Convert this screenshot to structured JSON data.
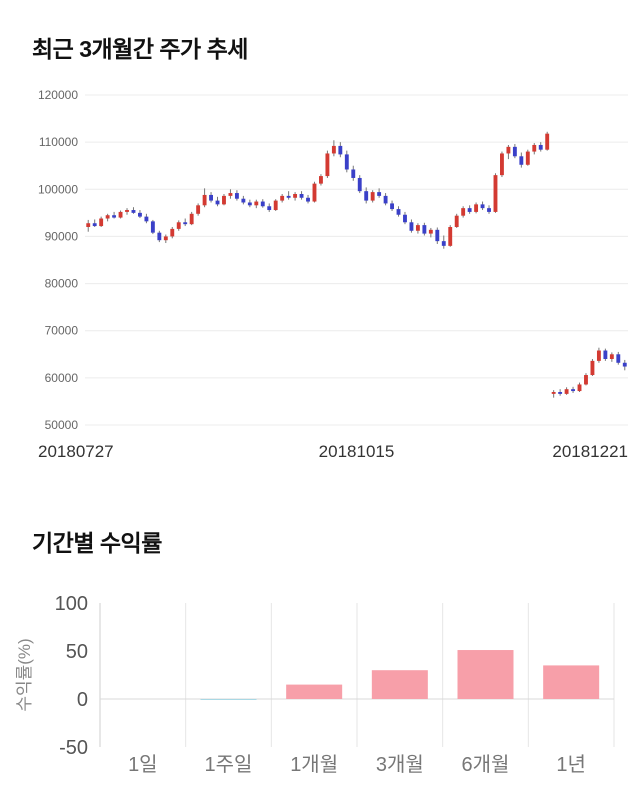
{
  "page": {
    "background": "#ffffff"
  },
  "chart_data": [
    {
      "type": "candlestick",
      "title": "최근 3개월간 주가 추세",
      "ylim": [
        50000,
        120000
      ],
      "y_ticks": [
        120000,
        110000,
        100000,
        90000,
        80000,
        70000,
        60000,
        50000
      ],
      "x_tick_labels": [
        "20180727",
        "20181015",
        "20181221"
      ],
      "up_color": "#d33a32",
      "down_color": "#3a40c8",
      "wick_color": "#777777",
      "grid_color": "#ececec",
      "candles": [
        [
          92000,
          93500,
          91000,
          92800
        ],
        [
          92800,
          93600,
          92000,
          92200
        ],
        [
          92200,
          94200,
          92000,
          93800
        ],
        [
          93800,
          94800,
          93200,
          94500
        ],
        [
          94500,
          95200,
          93800,
          94000
        ],
        [
          94000,
          95500,
          93800,
          95200
        ],
        [
          95200,
          96000,
          94600,
          95600
        ],
        [
          95600,
          96200,
          94800,
          95000
        ],
        [
          95000,
          95600,
          93900,
          94200
        ],
        [
          94200,
          94800,
          92800,
          93200
        ],
        [
          93200,
          93500,
          90500,
          90800
        ],
        [
          90800,
          91200,
          88800,
          89200
        ],
        [
          89200,
          90400,
          88600,
          90000
        ],
        [
          90000,
          92000,
          89600,
          91600
        ],
        [
          91600,
          93400,
          91200,
          93000
        ],
        [
          93000,
          93800,
          92200,
          92600
        ],
        [
          92600,
          95200,
          92400,
          94800
        ],
        [
          94800,
          97000,
          94400,
          96600
        ],
        [
          96600,
          100200,
          96200,
          98800
        ],
        [
          98800,
          99400,
          97200,
          97600
        ],
        [
          97600,
          98400,
          96400,
          96800
        ],
        [
          96800,
          99000,
          96600,
          98600
        ],
        [
          98600,
          100000,
          98000,
          99200
        ],
        [
          99200,
          99800,
          97600,
          98000
        ],
        [
          98000,
          98600,
          96800,
          97200
        ],
        [
          97200,
          97800,
          96200,
          96600
        ],
        [
          96600,
          97800,
          96000,
          97400
        ],
        [
          97400,
          97900,
          96100,
          96400
        ],
        [
          96400,
          97000,
          95200,
          95600
        ],
        [
          95600,
          97900,
          95400,
          97600
        ],
        [
          97600,
          99000,
          97200,
          98600
        ],
        [
          98600,
          99600,
          97800,
          98200
        ],
        [
          98200,
          99400,
          97600,
          99000
        ],
        [
          99000,
          99600,
          97800,
          98200
        ],
        [
          98200,
          98800,
          97000,
          97400
        ],
        [
          97400,
          101600,
          97200,
          101200
        ],
        [
          101200,
          103200,
          100800,
          102800
        ],
        [
          102800,
          108200,
          102400,
          107600
        ],
        [
          107600,
          110400,
          107000,
          109200
        ],
        [
          109200,
          110000,
          106800,
          107400
        ],
        [
          107400,
          108200,
          103600,
          104200
        ],
        [
          104200,
          105000,
          101800,
          102400
        ],
        [
          102400,
          103000,
          99200,
          99600
        ],
        [
          99600,
          100400,
          97000,
          97600
        ],
        [
          97600,
          99800,
          97200,
          99400
        ],
        [
          99400,
          100200,
          98200,
          98600
        ],
        [
          98600,
          99200,
          96600,
          97000
        ],
        [
          97000,
          97600,
          95400,
          95800
        ],
        [
          95800,
          96400,
          94200,
          94600
        ],
        [
          94600,
          95200,
          92600,
          93000
        ],
        [
          93000,
          93600,
          90800,
          91200
        ],
        [
          91200,
          92800,
          90600,
          92400
        ],
        [
          92400,
          92900,
          90200,
          90600
        ],
        [
          90600,
          91800,
          89800,
          91400
        ],
        [
          91400,
          91900,
          88400,
          89000
        ],
        [
          89000,
          90200,
          87400,
          88000
        ],
        [
          88000,
          92400,
          87800,
          92000
        ],
        [
          92000,
          94800,
          91800,
          94400
        ],
        [
          94400,
          96400,
          94000,
          96000
        ],
        [
          96000,
          96600,
          94800,
          95200
        ],
        [
          95200,
          97200,
          94900,
          96800
        ],
        [
          96800,
          97400,
          95600,
          96000
        ],
        [
          96000,
          96600,
          94800,
          95200
        ],
        [
          95200,
          103400,
          95000,
          103000
        ],
        [
          103000,
          108000,
          102600,
          107600
        ],
        [
          107600,
          109400,
          106400,
          109000
        ],
        [
          109000,
          109600,
          106600,
          107000
        ],
        [
          107000,
          107800,
          104600,
          105200
        ],
        [
          105200,
          108400,
          105000,
          108000
        ],
        [
          108000,
          109800,
          107400,
          109400
        ],
        [
          109400,
          110000,
          108000,
          108400
        ],
        [
          108400,
          112200,
          108200,
          111800
        ],
        [
          56600,
          57400,
          55800,
          57000
        ],
        [
          57000,
          57600,
          56200,
          56600
        ],
        [
          56600,
          58000,
          56400,
          57600
        ],
        [
          57600,
          58100,
          56800,
          57200
        ],
        [
          57200,
          59000,
          57000,
          58600
        ],
        [
          58600,
          61000,
          58400,
          60600
        ],
        [
          60600,
          64000,
          60400,
          63600
        ],
        [
          63600,
          66400,
          63200,
          65800
        ],
        [
          65800,
          66200,
          63600,
          64000
        ],
        [
          64000,
          65400,
          63400,
          65000
        ],
        [
          65000,
          65500,
          62800,
          63200
        ],
        [
          63200,
          63800,
          61600,
          62400
        ]
      ]
    },
    {
      "type": "bar",
      "title": "기간별 수익률",
      "ylabel": "수익률(%)",
      "ylim": [
        -50,
        100
      ],
      "y_ticks": [
        100,
        50,
        0,
        -50
      ],
      "categories": [
        "1일",
        "1주일",
        "1개월",
        "3개월",
        "6개월",
        "1년"
      ],
      "values": [
        0,
        -1,
        15,
        30,
        51,
        35
      ],
      "positive_color": "#f79fa9",
      "negative_color": "#a9d8e4",
      "grid_color": "#e6e6e6",
      "axis_color": "#cfcfcf"
    }
  ]
}
